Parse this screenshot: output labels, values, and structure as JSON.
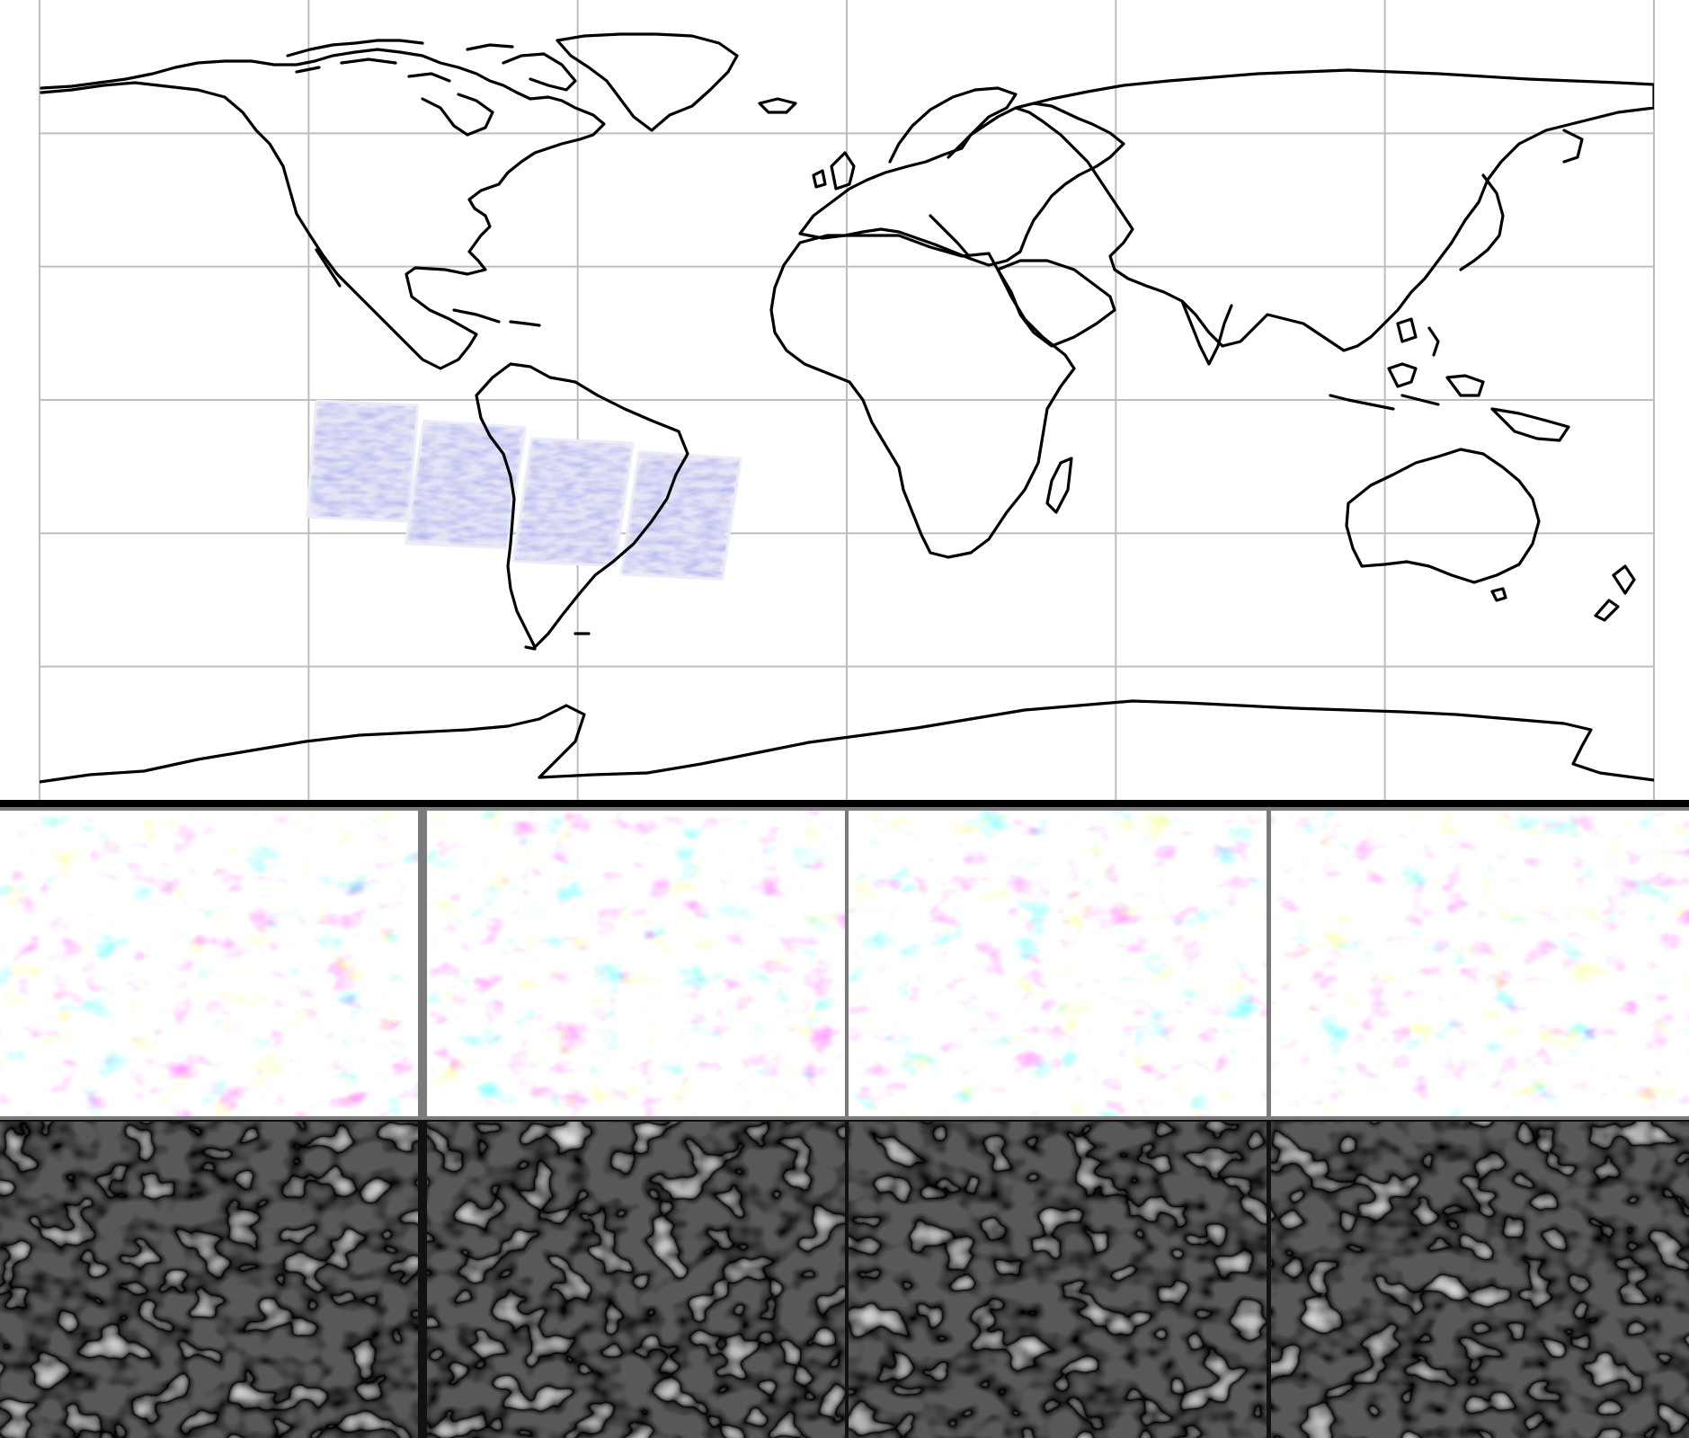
{
  "map": {
    "projection": "plate-carree",
    "extent": {
      "lon": [
        -180,
        180
      ],
      "lat": [
        -90,
        90
      ]
    },
    "gridlines": {
      "lon": [
        -120,
        -60,
        0,
        60,
        120
      ],
      "lat": [
        -60,
        -30,
        0,
        30,
        60
      ]
    },
    "grid_color": "#bdbdbd",
    "coastline_color": "#000000",
    "swaths": [
      {
        "id": "swath-1",
        "corners": [
          [
            -118,
            -0.5
          ],
          [
            -96,
            -1.5
          ],
          [
            -98,
            -27
          ],
          [
            -120,
            -26
          ]
        ]
      },
      {
        "id": "swath-2",
        "corners": [
          [
            -94,
            -5
          ],
          [
            -72,
            -6.5
          ],
          [
            -76,
            -33
          ],
          [
            -98,
            -32
          ]
        ]
      },
      {
        "id": "swath-3",
        "corners": [
          [
            -70,
            -9
          ],
          [
            -48,
            -10
          ],
          [
            -52,
            -37
          ],
          [
            -74,
            -36
          ]
        ]
      },
      {
        "id": "swath-4",
        "corners": [
          [
            -46,
            -12
          ],
          [
            -24,
            -13.5
          ],
          [
            -28,
            -40
          ],
          [
            -50,
            -39
          ]
        ]
      }
    ]
  },
  "palette": {
    "diverging": {
      "negative": "#3b3bd6",
      "neutral": "#ffffff",
      "positive": "#e03a3a"
    },
    "magnitude": {
      "background": "#1a1a1a",
      "peak": "#ffffff",
      "contour": "#000000"
    }
  },
  "rows": {
    "field": {
      "label": "",
      "tile_count": 4
    },
    "magnitude": {
      "label": "",
      "tile_count": 4
    }
  }
}
